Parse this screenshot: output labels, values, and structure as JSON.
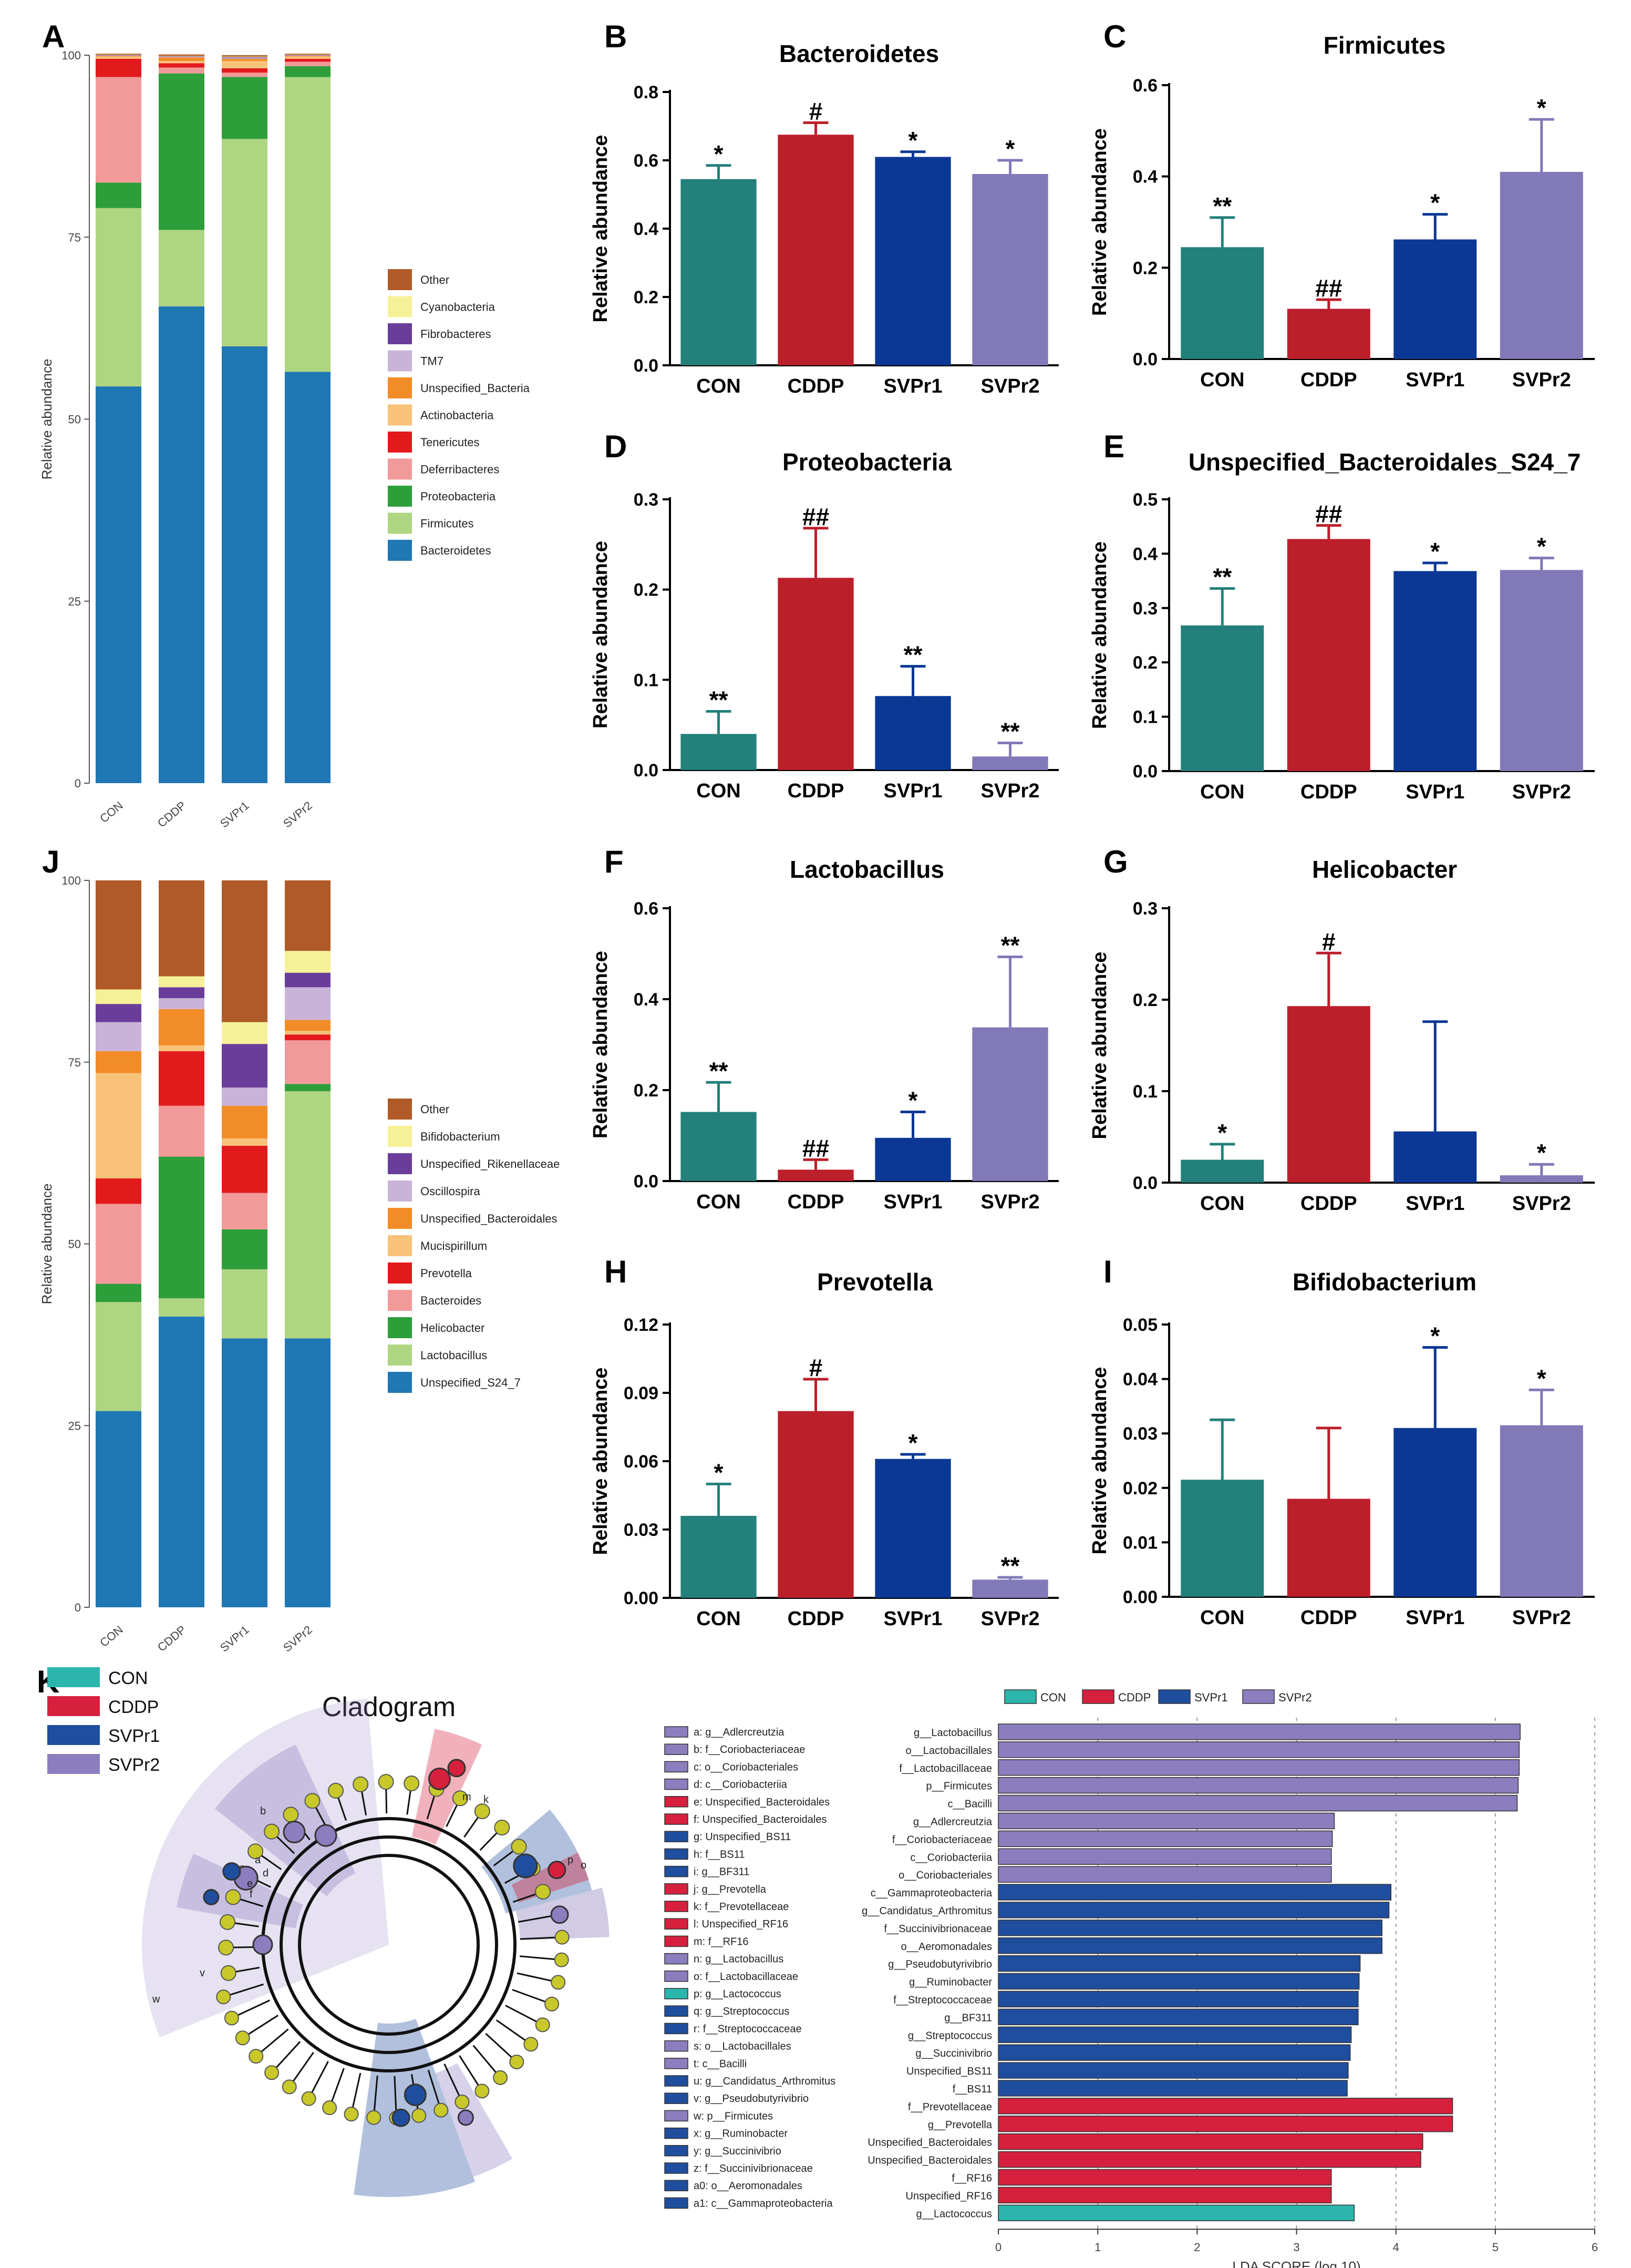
{
  "panel_labels": [
    "A",
    "B",
    "C",
    "D",
    "E",
    "F",
    "G",
    "H",
    "I",
    "J",
    "K"
  ],
  "chart_data": [
    {
      "id": "A",
      "type": "bar",
      "stacked": true,
      "categories": [
        "CON",
        "CDDP",
        "SVPr1",
        "SVPr2"
      ],
      "ylabel": "Relative abundance",
      "ylim": [
        0,
        100
      ],
      "yticks": [
        0,
        25,
        50,
        75,
        100
      ],
      "series": [
        {
          "name": "Bacteroidetes",
          "color": "#1f77b4",
          "values": [
            54.5,
            65.5,
            60,
            56.5
          ]
        },
        {
          "name": "Firmicutes",
          "color": "#aed581",
          "values": [
            24.5,
            10.5,
            28.5,
            40.5
          ]
        },
        {
          "name": "Proteobacteria",
          "color": "#2e9e3a",
          "values": [
            3.5,
            21.5,
            8.5,
            1.5
          ]
        },
        {
          "name": "Deferribacteres",
          "color": "#f29a9a",
          "values": [
            14.5,
            0.8,
            0.6,
            0.6
          ]
        },
        {
          "name": "Tenericutes",
          "color": "#e31a1c",
          "values": [
            2.5,
            0.6,
            0.6,
            0.4
          ]
        },
        {
          "name": "Actinobacteria",
          "color": "#f8c27a",
          "values": [
            0.3,
            0.3,
            1.0,
            0.3
          ]
        },
        {
          "name": "Unspecified_Bacteria",
          "color": "#f28c28",
          "values": [
            0.1,
            0.5,
            0.3,
            0.1
          ]
        },
        {
          "name": "TM7",
          "color": "#c9b3d9",
          "values": [
            0.05,
            0.1,
            0.1,
            0.05
          ]
        },
        {
          "name": "Fibrobacteres",
          "color": "#6a3d9a",
          "values": [
            0.05,
            0.05,
            0.1,
            0.05
          ]
        },
        {
          "name": "Cyanobacteria",
          "color": "#f6f199",
          "values": [
            0.05,
            0.05,
            0.1,
            0.05
          ]
        },
        {
          "name": "Other",
          "color": "#b05a28",
          "values": [
            0.15,
            0.2,
            0.2,
            0.15
          ]
        }
      ]
    },
    {
      "id": "B",
      "type": "bar",
      "title": "Bacteroidetes",
      "categories": [
        "CON",
        "CDDP",
        "SVPr1",
        "SVPr2"
      ],
      "values": [
        0.545,
        0.675,
        0.61,
        0.56
      ],
      "errors": [
        0.04,
        0.035,
        0.015,
        0.04
      ],
      "significance": [
        "*",
        "#",
        "*",
        "*"
      ],
      "ylabel": "Relative abundance",
      "ylim": [
        0,
        0.8
      ],
      "yticks": [
        "0.0",
        "0.2",
        "0.4",
        "0.6",
        "0.8"
      ]
    },
    {
      "id": "C",
      "type": "bar",
      "title": "Firmicutes",
      "categories": [
        "CON",
        "CDDP",
        "SVPr1",
        "SVPr2"
      ],
      "values": [
        0.245,
        0.11,
        0.262,
        0.41
      ],
      "errors": [
        0.065,
        0.02,
        0.055,
        0.115
      ],
      "significance": [
        "**",
        "##",
        "*",
        "*"
      ],
      "ylabel": "Relative abundance",
      "ylim": [
        0,
        0.6
      ],
      "yticks": [
        "0.0",
        "0.2",
        "0.4",
        "0.6"
      ]
    },
    {
      "id": "D",
      "type": "bar",
      "title": "Proteobacteria",
      "categories": [
        "CON",
        "CDDP",
        "SVPr1",
        "SVPr2"
      ],
      "values": [
        0.04,
        0.213,
        0.082,
        0.015
      ],
      "errors": [
        0.025,
        0.055,
        0.033,
        0.015
      ],
      "significance": [
        "**",
        "##",
        "**",
        "**"
      ],
      "ylabel": "Relative abundance",
      "ylim": [
        0,
        0.3
      ],
      "yticks": [
        "0.0",
        "0.1",
        "0.2",
        "0.3"
      ]
    },
    {
      "id": "E",
      "type": "bar",
      "title": "Unspecified_Bacteroidales_S24_7",
      "categories": [
        "CON",
        "CDDP",
        "SVPr1",
        "SVPr2"
      ],
      "values": [
        0.268,
        0.427,
        0.368,
        0.37
      ],
      "errors": [
        0.068,
        0.025,
        0.015,
        0.022
      ],
      "significance": [
        "**",
        "##",
        "*",
        "*"
      ],
      "ylabel": "Relative abundance",
      "ylim": [
        0,
        0.5
      ],
      "yticks": [
        "0.0",
        "0.1",
        "0.2",
        "0.3",
        "0.4",
        "0.5"
      ]
    },
    {
      "id": "F",
      "type": "bar",
      "title": "Lactobacillus",
      "categories": [
        "CON",
        "CDDP",
        "SVPr1",
        "SVPr2"
      ],
      "values": [
        0.152,
        0.025,
        0.095,
        0.338
      ],
      "errors": [
        0.065,
        0.022,
        0.057,
        0.155
      ],
      "significance": [
        "**",
        "##",
        "*",
        "**"
      ],
      "ylabel": "Relative abundance",
      "ylim": [
        0,
        0.6
      ],
      "yticks": [
        "0.0",
        "0.2",
        "0.4",
        "0.6"
      ]
    },
    {
      "id": "G",
      "type": "bar",
      "title": "Helicobacter",
      "categories": [
        "CON",
        "CDDP",
        "SVPr1",
        "SVPr2"
      ],
      "values": [
        0.025,
        0.193,
        0.056,
        0.008
      ],
      "errors": [
        0.017,
        0.058,
        0.12,
        0.012
      ],
      "significance": [
        "*",
        "#",
        "",
        "*"
      ],
      "ylabel": "Relative abundance",
      "ylim": [
        0,
        0.3
      ],
      "yticks": [
        "0.0",
        "0.1",
        "0.2",
        "0.3"
      ]
    },
    {
      "id": "H",
      "type": "bar",
      "title": "Prevotella",
      "categories": [
        "CON",
        "CDDP",
        "SVPr1",
        "SVPr2"
      ],
      "values": [
        0.036,
        0.082,
        0.061,
        0.008
      ],
      "errors": [
        0.014,
        0.014,
        0.002,
        0.001
      ],
      "significance": [
        "*",
        "#",
        "*",
        "**"
      ],
      "ylabel": "Relative abundance",
      "ylim": [
        0,
        0.12
      ],
      "yticks": [
        "0.00",
        "0.03",
        "0.06",
        "0.09",
        "0.12"
      ]
    },
    {
      "id": "I",
      "type": "bar",
      "title": "Bifidobacterium",
      "categories": [
        "CON",
        "CDDP",
        "SVPr1",
        "SVPr2"
      ],
      "values": [
        0.0215,
        0.018,
        0.031,
        0.0315
      ],
      "errors": [
        0.011,
        0.013,
        0.0148,
        0.0065
      ],
      "significance": [
        "",
        "",
        "*",
        "*"
      ],
      "ylabel": "Relative abundance",
      "ylim": [
        0,
        0.05
      ],
      "yticks": [
        "0.00",
        "0.01",
        "0.02",
        "0.03",
        "0.04",
        "0.05"
      ]
    },
    {
      "id": "J",
      "type": "bar",
      "stacked": true,
      "categories": [
        "CON",
        "CDDP",
        "SVPr1",
        "SVPr2"
      ],
      "ylabel": "Relative abundance",
      "ylim": [
        0,
        100
      ],
      "yticks": [
        0,
        25,
        50,
        75,
        100
      ],
      "series": [
        {
          "name": "Unspecified_S24_7",
          "color": "#1f77b4",
          "values": [
            27,
            40,
            37,
            37
          ]
        },
        {
          "name": "Lactobacillus",
          "color": "#aed581",
          "values": [
            15,
            2.5,
            9.5,
            34
          ]
        },
        {
          "name": "Helicobacter",
          "color": "#2e9e3a",
          "values": [
            2.5,
            19.5,
            5.5,
            1
          ]
        },
        {
          "name": "Bacteroides",
          "color": "#f29a9a",
          "values": [
            11,
            7,
            5,
            6
          ]
        },
        {
          "name": "Prevotella",
          "color": "#e31a1c",
          "values": [
            3.5,
            7.5,
            6.5,
            0.8
          ]
        },
        {
          "name": "Mucispirillum",
          "color": "#f8c27a",
          "values": [
            14.5,
            0.8,
            1,
            0.5
          ]
        },
        {
          "name": "Unspecified_Bacteroidales",
          "color": "#f28c28",
          "values": [
            3,
            5,
            4.5,
            1.5
          ]
        },
        {
          "name": "Oscillospira",
          "color": "#c9b3d9",
          "values": [
            4,
            1.5,
            2.5,
            4.5
          ]
        },
        {
          "name": "Unspecified_Rikenellaceae",
          "color": "#6a3d9a",
          "values": [
            2.5,
            1.5,
            6,
            2
          ]
        },
        {
          "name": "Bifidobacterium",
          "color": "#f6f199",
          "values": [
            2,
            1.5,
            3,
            3
          ]
        },
        {
          "name": "Other",
          "color": "#b05a28",
          "values": [
            15,
            13.2,
            19.5,
            9.7
          ]
        }
      ]
    },
    {
      "id": "K-cladogram",
      "type": "other",
      "title": "Cladogram",
      "legend": [
        {
          "name": "CON",
          "color": "#2bb5ac"
        },
        {
          "name": "CDDP",
          "color": "#d6203e"
        },
        {
          "name": "SVPr1",
          "color": "#1f4e9e"
        },
        {
          "name": "SVPr2",
          "color": "#8c7dbf"
        }
      ],
      "clade_keys": [
        {
          "key": "a: g__Adlercreutzia",
          "group": "SVPr2"
        },
        {
          "key": "b: f__Coriobacteriaceae",
          "group": "SVPr2"
        },
        {
          "key": "c: o__Coriobacteriales",
          "group": "SVPr2"
        },
        {
          "key": "d: c__Coriobacteriia",
          "group": "SVPr2"
        },
        {
          "key": "e: Unspecified_Bacteroidales",
          "group": "CDDP"
        },
        {
          "key": "f: Unspecified_Bacteroidales",
          "group": "CDDP"
        },
        {
          "key": "g: Unspecified_BS11",
          "group": "SVPr1"
        },
        {
          "key": "h: f__BS11",
          "group": "SVPr1"
        },
        {
          "key": "i: g__BF311",
          "group": "SVPr1"
        },
        {
          "key": "j: g__Prevotella",
          "group": "CDDP"
        },
        {
          "key": "k: f__Prevotellaceae",
          "group": "CDDP"
        },
        {
          "key": "l: Unspecified_RF16",
          "group": "CDDP"
        },
        {
          "key": "m: f__RF16",
          "group": "CDDP"
        },
        {
          "key": "n: g__Lactobacillus",
          "group": "SVPr2"
        },
        {
          "key": "o: f__Lactobacillaceae",
          "group": "SVPr2"
        },
        {
          "key": "p: g__Lactococcus",
          "group": "CON"
        },
        {
          "key": "q: g__Streptococcus",
          "group": "SVPr1"
        },
        {
          "key": "r: f__Streptococcaceae",
          "group": "SVPr1"
        },
        {
          "key": "s: o__Lactobacillales",
          "group": "SVPr2"
        },
        {
          "key": "t: c__Bacilli",
          "group": "SVPr2"
        },
        {
          "key": "u: g__Candidatus_Arthromitus",
          "group": "SVPr1"
        },
        {
          "key": "v: g__Pseudobutyrivibrio",
          "group": "SVPr1"
        },
        {
          "key": "w: p__Firmicutes",
          "group": "SVPr2"
        },
        {
          "key": "x: g__Ruminobacter",
          "group": "SVPr1"
        },
        {
          "key": "y: g__Succinivibrio",
          "group": "SVPr1"
        },
        {
          "key": "z: f__Succinivibrionaceae",
          "group": "SVPr1"
        },
        {
          "key": "a0: o__Aeromonadales",
          "group": "SVPr1"
        },
        {
          "key": "a1: c__Gammaproteobacteria",
          "group": "SVPr1"
        }
      ],
      "node_labels": [
        "m",
        "k",
        "w",
        "v",
        "p",
        "o",
        "b",
        "a",
        "d",
        "e",
        "f"
      ]
    },
    {
      "id": "K-lda",
      "type": "bar",
      "orientation": "horizontal",
      "xlabel": "LDA SCORE (log 10)",
      "xlim": [
        0,
        6
      ],
      "xticks": [
        0,
        1,
        2,
        3,
        4,
        5,
        6
      ],
      "legend": [
        "CON",
        "CDDP",
        "SVPr1",
        "SVPr2"
      ],
      "bars": [
        {
          "name": "g__Lactobacillus",
          "group": "SVPr2",
          "value": 5.25
        },
        {
          "name": "o__Lactobacillales",
          "group": "SVPr2",
          "value": 5.24
        },
        {
          "name": "f__Lactobacillaceae",
          "group": "SVPr2",
          "value": 5.24
        },
        {
          "name": "p__Firmicutes",
          "group": "SVPr2",
          "value": 5.23
        },
        {
          "name": "c__Bacilli",
          "group": "SVPr2",
          "value": 5.22
        },
        {
          "name": "g__Adlercreutzia",
          "group": "SVPr2",
          "value": 3.38
        },
        {
          "name": "f__Coriobacteriaceae",
          "group": "SVPr2",
          "value": 3.36
        },
        {
          "name": "c__Coriobacteriia",
          "group": "SVPr2",
          "value": 3.35
        },
        {
          "name": "o__Coriobacteriales",
          "group": "SVPr2",
          "value": 3.35
        },
        {
          "name": "c__Gammaproteobacteria",
          "group": "SVPr1",
          "value": 3.95
        },
        {
          "name": "g__Candidatus_Arthromitus",
          "group": "SVPr1",
          "value": 3.93
        },
        {
          "name": "f__Succinivibrionaceae",
          "group": "SVPr1",
          "value": 3.86
        },
        {
          "name": "o__Aeromonadales",
          "group": "SVPr1",
          "value": 3.86
        },
        {
          "name": "g__Pseudobutyrivibrio",
          "group": "SVPr1",
          "value": 3.64
        },
        {
          "name": "g__Ruminobacter",
          "group": "SVPr1",
          "value": 3.63
        },
        {
          "name": "f__Streptococcaceae",
          "group": "SVPr1",
          "value": 3.62
        },
        {
          "name": "g__BF311",
          "group": "SVPr1",
          "value": 3.62
        },
        {
          "name": "g__Streptococcus",
          "group": "SVPr1",
          "value": 3.55
        },
        {
          "name": "g__Succinivibrio",
          "group": "SVPr1",
          "value": 3.54
        },
        {
          "name": "Unspecified_BS11",
          "group": "SVPr1",
          "value": 3.52
        },
        {
          "name": "f__BS11",
          "group": "SVPr1",
          "value": 3.51
        },
        {
          "name": "f__Prevotellaceae",
          "group": "CDDP",
          "value": 4.57
        },
        {
          "name": "g__Prevotella",
          "group": "CDDP",
          "value": 4.57
        },
        {
          "name": "Unspecified_Bacteroidales",
          "group": "CDDP",
          "value": 4.27
        },
        {
          "name": "Unspecified_Bacteroidales",
          "group": "CDDP",
          "value": 4.25
        },
        {
          "name": "f__RF16",
          "group": "CDDP",
          "value": 3.35
        },
        {
          "name": "Unspecified_RF16",
          "group": "CDDP",
          "value": 3.35
        },
        {
          "name": "g__Lactococcus",
          "group": "CON",
          "value": 3.58
        }
      ]
    }
  ],
  "colors": {
    "CON": "#23807a",
    "CDDP": "#bb1f2a",
    "SVPr1": "#0b3895",
    "SVPr2": "#8179b8",
    "lda_CON": "#2bb5ac",
    "lda_CDDP": "#d6203e",
    "lda_SVPr1": "#1f4e9e",
    "lda_SVPr2": "#8c7dbf"
  }
}
